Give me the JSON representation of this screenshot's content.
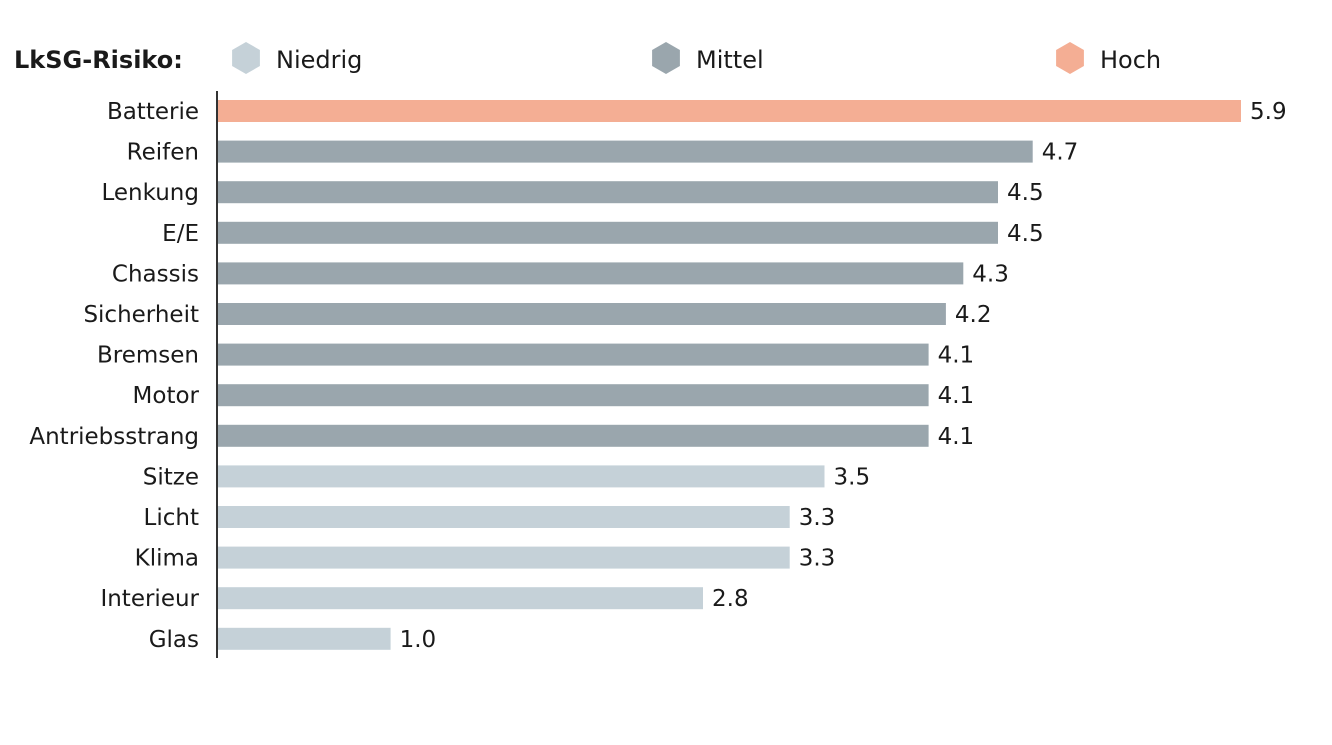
{
  "legend": {
    "title": "LkSG-Risiko:",
    "items": [
      {
        "label": "Niedrig",
        "color": "#c5d1d8",
        "icon": "hexagon-icon"
      },
      {
        "label": "Mittel",
        "color": "#9aa6ad",
        "icon": "hexagon-icon"
      },
      {
        "label": "Hoch",
        "color": "#f4ae94",
        "icon": "hexagon-icon"
      }
    ]
  },
  "chart_data": {
    "type": "bar",
    "orientation": "horizontal",
    "title": "",
    "xlabel": "",
    "ylabel": "",
    "xlim": [
      0,
      5.9
    ],
    "grid": false,
    "legend_position": "top",
    "categories": [
      "Batterie",
      "Reifen",
      "Lenkung",
      "E/E",
      "Chassis",
      "Sicherheit",
      "Bremsen",
      "Motor",
      "Antriebsstrang",
      "Sitze",
      "Licht",
      "Klima",
      "Interieur",
      "Glas"
    ],
    "values": [
      5.9,
      4.7,
      4.5,
      4.5,
      4.3,
      4.2,
      4.1,
      4.1,
      4.1,
      3.5,
      3.3,
      3.3,
      2.8,
      1.0
    ],
    "value_labels": [
      "5.9",
      "4.7",
      "4.5",
      "4.5",
      "4.3",
      "4.2",
      "4.1",
      "4.1",
      "4.1",
      "3.5",
      "3.3",
      "3.3",
      "2.8",
      "1.0"
    ],
    "risk_levels": [
      "Hoch",
      "Mittel",
      "Mittel",
      "Mittel",
      "Mittel",
      "Mittel",
      "Mittel",
      "Mittel",
      "Mittel",
      "Niedrig",
      "Niedrig",
      "Niedrig",
      "Niedrig",
      "Niedrig"
    ],
    "colors": {
      "Niedrig": "#c5d1d8",
      "Mittel": "#9aa6ad",
      "Hoch": "#f4ae94",
      "axis": "#333333"
    }
  }
}
